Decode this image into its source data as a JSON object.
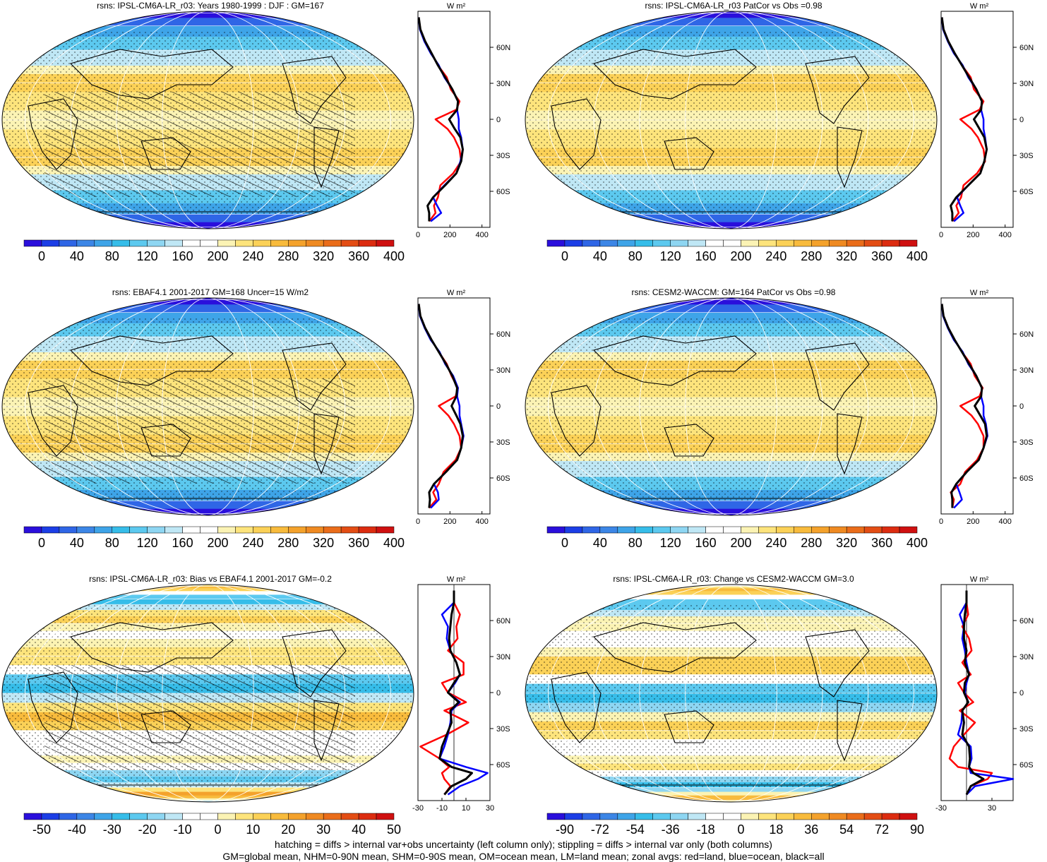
{
  "footer": {
    "line1": "hatching = diffs > internal var+obs uncertainty (left column only); stippling = diffs > internal var only (both columns)",
    "line2": "GM=global mean, NHM=0-90N mean, SHM=0-90S mean, OM=ocean mean, LM=land mean; zonal avgs: red=land, blue=ocean, black=all"
  },
  "colors": {
    "land": "#ff0000",
    "ocean": "#0000ff",
    "all": "#000000"
  },
  "chart_data": [
    {
      "type": "heatmap",
      "title": "rsns: IPSL-CM6A-LR_r03: Years 1980-1999 : DJF : GM=167",
      "mode": "abs",
      "hatch": true,
      "colorbar": {
        "ticks": [
          "0",
          "40",
          "80",
          "120",
          "160",
          "200",
          "240",
          "280",
          "320",
          "360",
          "400"
        ]
      },
      "zonal": {
        "units": "W m²",
        "xlim": [
          0,
          450
        ],
        "xticks": [
          "0",
          "200",
          "400"
        ],
        "lat_ticks": [
          "60N",
          "30N",
          "0",
          "30S",
          "60S"
        ],
        "lat": [
          85,
          75,
          65,
          55,
          45,
          35,
          25,
          15,
          8,
          0,
          -8,
          -15,
          -25,
          -35,
          -45,
          -55,
          -65,
          -72,
          -78,
          -85
        ],
        "all": [
          5,
          15,
          45,
          85,
          125,
          170,
          215,
          250,
          245,
          195,
          230,
          265,
          280,
          270,
          240,
          170,
          95,
          60,
          70,
          70
        ],
        "land": [
          5,
          15,
          45,
          85,
          125,
          180,
          205,
          260,
          240,
          110,
          185,
          225,
          260,
          270,
          220,
          140,
          125,
          100,
          110,
          70
        ],
        "ocean": [
          5,
          12,
          40,
          80,
          130,
          165,
          215,
          250,
          245,
          255,
          255,
          270,
          280,
          265,
          240,
          165,
          95,
          120,
          145,
          80
        ]
      }
    },
    {
      "type": "heatmap",
      "title": "rsns: IPSL-CM6A-LR_r03 PatCor vs Obs =0.98",
      "mode": "abs",
      "hatch": false,
      "colorbar": {
        "ticks": [
          "0",
          "40",
          "80",
          "120",
          "160",
          "200",
          "240",
          "280",
          "320",
          "360",
          "400"
        ]
      },
      "zonal": {
        "units": "W m²",
        "xlim": [
          0,
          450
        ],
        "xticks": [
          "0",
          "200",
          "400"
        ],
        "lat_ticks": [
          "60N",
          "30N",
          "0",
          "30S",
          "60S"
        ],
        "lat": [
          85,
          75,
          65,
          55,
          45,
          35,
          25,
          15,
          8,
          0,
          -8,
          -15,
          -25,
          -35,
          -45,
          -55,
          -65,
          -72,
          -78,
          -85
        ],
        "all": [
          5,
          15,
          45,
          85,
          130,
          175,
          220,
          255,
          250,
          205,
          240,
          270,
          285,
          270,
          245,
          170,
          95,
          60,
          70,
          70
        ],
        "land": [
          5,
          15,
          45,
          85,
          130,
          185,
          205,
          265,
          240,
          120,
          190,
          230,
          265,
          275,
          225,
          140,
          125,
          95,
          110,
          70
        ],
        "ocean": [
          5,
          12,
          42,
          80,
          135,
          170,
          220,
          255,
          250,
          265,
          265,
          275,
          285,
          270,
          245,
          170,
          100,
          120,
          140,
          80
        ]
      }
    },
    {
      "type": "heatmap",
      "title": "rsns: EBAF4.1 2001-2017 GM=168 Uncer=15 W/m2",
      "mode": "abs",
      "hatch": true,
      "colorbar": {
        "ticks": [
          "0",
          "40",
          "80",
          "120",
          "160",
          "200",
          "240",
          "280",
          "320",
          "360",
          "400"
        ]
      },
      "zonal": {
        "units": "W m²",
        "xlim": [
          0,
          450
        ],
        "xticks": [
          "0",
          "200",
          "400"
        ],
        "lat_ticks": [
          "60N",
          "30N",
          "0",
          "30S",
          "60S"
        ],
        "lat": [
          85,
          75,
          65,
          55,
          45,
          35,
          25,
          15,
          8,
          0,
          -8,
          -15,
          -25,
          -35,
          -45,
          -55,
          -65,
          -72,
          -78,
          -85
        ],
        "all": [
          5,
          15,
          45,
          85,
          130,
          175,
          215,
          245,
          240,
          210,
          240,
          265,
          280,
          270,
          245,
          175,
          100,
          70,
          75,
          70
        ],
        "land": [
          5,
          15,
          45,
          85,
          130,
          180,
          210,
          250,
          235,
          130,
          190,
          225,
          260,
          270,
          235,
          160,
          130,
          95,
          115,
          70
        ],
        "ocean": [
          5,
          12,
          42,
          80,
          135,
          170,
          220,
          250,
          245,
          260,
          260,
          270,
          285,
          270,
          245,
          175,
          100,
          125,
          130,
          80
        ]
      }
    },
    {
      "type": "heatmap",
      "title": "rsns: CESM2-WACCM: GM=164 PatCor vs Obs =0.98",
      "mode": "abs",
      "hatch": false,
      "colorbar": {
        "ticks": [
          "0",
          "40",
          "80",
          "120",
          "160",
          "200",
          "240",
          "280",
          "320",
          "360",
          "400"
        ]
      },
      "zonal": {
        "units": "W m²",
        "xlim": [
          0,
          450
        ],
        "xticks": [
          "0",
          "200",
          "400"
        ],
        "lat_ticks": [
          "60N",
          "30N",
          "0",
          "30S",
          "60S"
        ],
        "lat": [
          85,
          75,
          65,
          55,
          45,
          35,
          25,
          15,
          8,
          0,
          -8,
          -15,
          -25,
          -35,
          -45,
          -55,
          -65,
          -72,
          -78,
          -85
        ],
        "all": [
          5,
          15,
          45,
          85,
          130,
          175,
          220,
          255,
          250,
          210,
          245,
          275,
          285,
          265,
          235,
          160,
          95,
          65,
          70,
          70
        ],
        "land": [
          5,
          15,
          45,
          85,
          130,
          185,
          210,
          260,
          240,
          120,
          190,
          230,
          265,
          265,
          225,
          150,
          120,
          60,
          80,
          70
        ],
        "ocean": [
          5,
          12,
          42,
          80,
          135,
          170,
          220,
          255,
          250,
          265,
          265,
          280,
          290,
          265,
          235,
          160,
          95,
          115,
          130,
          80
        ]
      }
    },
    {
      "type": "heatmap",
      "title": "rsns: IPSL-CM6A-LR_r03: Bias vs EBAF4.1 2001-2017 GM=-0.2",
      "mode": "diff",
      "hatch": true,
      "colorbar": {
        "ticks": [
          "-50",
          "-40",
          "-30",
          "-20",
          "-10",
          "0",
          "10",
          "20",
          "30",
          "40",
          "50"
        ]
      },
      "zonal": {
        "units": "W m²",
        "xlim": [
          -30,
          30
        ],
        "xticks": [
          "-30",
          "-10",
          "10",
          "30"
        ],
        "lat_ticks": [
          "60N",
          "30N",
          "0",
          "30S",
          "60S"
        ],
        "lat": [
          85,
          75,
          65,
          55,
          45,
          35,
          25,
          15,
          8,
          0,
          -8,
          -15,
          -25,
          -35,
          -45,
          -55,
          -62,
          -67,
          -72,
          -78,
          -85
        ],
        "all": [
          0,
          0,
          -2,
          -3,
          -4,
          -3,
          2,
          5,
          0,
          -5,
          4,
          -3,
          -2,
          -6,
          -10,
          -12,
          -2,
          15,
          10,
          -2,
          -8
        ],
        "land": [
          0,
          0,
          5,
          2,
          3,
          -5,
          8,
          8,
          -10,
          -5,
          10,
          -8,
          12,
          -6,
          -28,
          -12,
          -4,
          -10,
          -8,
          -3,
          -8
        ],
        "ocean": [
          0,
          0,
          -10,
          -5,
          -6,
          -3,
          2,
          5,
          1,
          -5,
          5,
          -2,
          -3,
          -5,
          -8,
          -12,
          10,
          28,
          20,
          5,
          -5
        ]
      }
    },
    {
      "type": "heatmap",
      "title": "rsns: IPSL-CM6A-LR_r03: Change vs CESM2-WACCM GM=3.0",
      "mode": "diff",
      "hatch": false,
      "colorbar": {
        "ticks": [
          "-90",
          "-72",
          "-54",
          "-36",
          "-18",
          "0",
          "18",
          "36",
          "54",
          "72",
          "90"
        ]
      },
      "zonal": {
        "units": "W m²",
        "xlim": [
          -30,
          55
        ],
        "xticks": [
          "-30",
          "30"
        ],
        "lat_ticks": [
          "60N",
          "30N",
          "0",
          "30S",
          "60S"
        ],
        "lat": [
          85,
          75,
          65,
          55,
          45,
          35,
          25,
          15,
          8,
          0,
          -8,
          -15,
          -25,
          -35,
          -45,
          -55,
          -62,
          -67,
          -72,
          -78,
          -85
        ],
        "all": [
          0,
          0,
          -2,
          -3,
          -3,
          0,
          -2,
          3,
          -2,
          -3,
          2,
          -5,
          -3,
          -5,
          3,
          4,
          3,
          8,
          20,
          5,
          0
        ],
        "land": [
          0,
          0,
          2,
          -5,
          3,
          6,
          -5,
          5,
          -10,
          -3,
          8,
          -8,
          10,
          -3,
          -15,
          -20,
          -10,
          30,
          25,
          5,
          0
        ],
        "ocean": [
          0,
          0,
          -8,
          -3,
          -5,
          -2,
          0,
          3,
          0,
          -2,
          2,
          -5,
          -6,
          -10,
          5,
          6,
          3,
          5,
          55,
          10,
          0
        ]
      }
    }
  ]
}
